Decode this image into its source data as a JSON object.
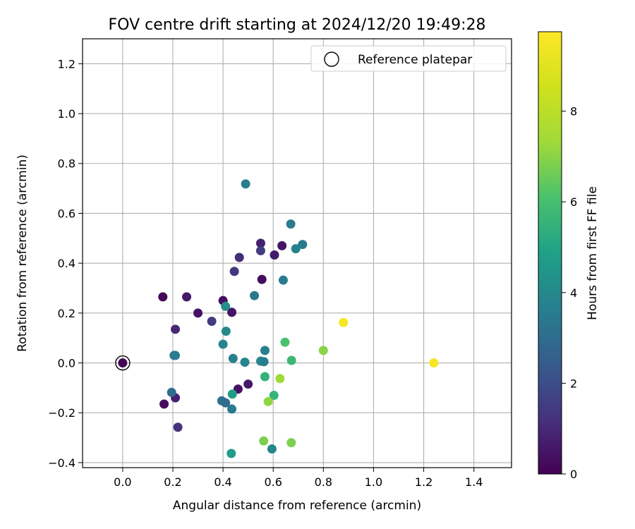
{
  "chart_data": {
    "type": "scatter",
    "title": "FOV centre drift starting at 2024/12/20 19:49:28",
    "xlabel": "Angular distance from reference (arcmin)",
    "ylabel": "Rotation from reference (arcmin)",
    "xlim": [
      -0.16,
      1.55
    ],
    "ylim": [
      -0.42,
      1.3
    ],
    "xticks": [
      0.0,
      0.2,
      0.4,
      0.6,
      0.8,
      1.0,
      1.2,
      1.4
    ],
    "xtick_labels": [
      "0.0",
      "0.2",
      "0.4",
      "0.6",
      "0.8",
      "1.0",
      "1.2",
      "1.4"
    ],
    "yticks": [
      -0.4,
      -0.2,
      0.0,
      0.2,
      0.4,
      0.6,
      0.8,
      1.0,
      1.2
    ],
    "ytick_labels": [
      "−0.4",
      "−0.2",
      "0.0",
      "0.2",
      "0.4",
      "0.6",
      "0.8",
      "1.0",
      "1.2"
    ],
    "grid": true,
    "legend": {
      "position": "top-right",
      "entries": [
        "Reference platepar"
      ]
    },
    "colorbar": {
      "label": "Hours from first FF file",
      "colormap": "viridis",
      "range": [
        0,
        9.75
      ],
      "ticks": [
        0,
        2,
        4,
        6,
        8
      ],
      "tick_labels": [
        "0",
        "2",
        "4",
        "6",
        "8"
      ]
    },
    "reference_point": {
      "x": 0.0,
      "y": 0.0
    },
    "points": [
      {
        "x": 0.0,
        "y": 0.0,
        "c": 0.1
      },
      {
        "x": 0.16,
        "y": 0.265,
        "c": 0.2
      },
      {
        "x": 0.165,
        "y": -0.165,
        "c": 0.3
      },
      {
        "x": 0.21,
        "y": 0.135,
        "c": 1.0
      },
      {
        "x": 0.21,
        "y": -0.14,
        "c": 0.8
      },
      {
        "x": 0.22,
        "y": -0.258,
        "c": 1.2
      },
      {
        "x": 0.255,
        "y": 0.265,
        "c": 0.6
      },
      {
        "x": 0.3,
        "y": 0.2,
        "c": 0.4
      },
      {
        "x": 0.355,
        "y": 0.167,
        "c": 1.5
      },
      {
        "x": 0.4,
        "y": 0.25,
        "c": 0.3
      },
      {
        "x": 0.435,
        "y": 0.203,
        "c": 0.5
      },
      {
        "x": 0.445,
        "y": 0.367,
        "c": 1.3
      },
      {
        "x": 0.465,
        "y": 0.423,
        "c": 1.1
      },
      {
        "x": 0.46,
        "y": -0.105,
        "c": 0.4
      },
      {
        "x": 0.5,
        "y": -0.085,
        "c": 0.6
      },
      {
        "x": 0.55,
        "y": 0.48,
        "c": 0.8
      },
      {
        "x": 0.55,
        "y": 0.45,
        "c": 1.5
      },
      {
        "x": 0.555,
        "y": 0.335,
        "c": 0.3
      },
      {
        "x": 0.605,
        "y": 0.433,
        "c": 0.7
      },
      {
        "x": 0.635,
        "y": 0.47,
        "c": 0.5
      },
      {
        "x": 0.205,
        "y": 0.03,
        "c": 3.3
      },
      {
        "x": 0.21,
        "y": 0.03,
        "c": 3.6
      },
      {
        "x": 0.195,
        "y": -0.118,
        "c": 3.0
      },
      {
        "x": 0.395,
        "y": -0.152,
        "c": 3.2
      },
      {
        "x": 0.41,
        "y": -0.16,
        "c": 3.0
      },
      {
        "x": 0.435,
        "y": -0.185,
        "c": 3.5
      },
      {
        "x": 0.4,
        "y": 0.075,
        "c": 3.8
      },
      {
        "x": 0.41,
        "y": 0.227,
        "c": 4.2
      },
      {
        "x": 0.412,
        "y": 0.127,
        "c": 4.0
      },
      {
        "x": 0.44,
        "y": 0.018,
        "c": 3.7
      },
      {
        "x": 0.487,
        "y": 0.003,
        "c": 3.9
      },
      {
        "x": 0.49,
        "y": 0.718,
        "c": 3.6
      },
      {
        "x": 0.525,
        "y": 0.27,
        "c": 3.4
      },
      {
        "x": 0.55,
        "y": 0.007,
        "c": 4.0
      },
      {
        "x": 0.563,
        "y": 0.005,
        "c": 3.5
      },
      {
        "x": 0.567,
        "y": 0.05,
        "c": 3.7
      },
      {
        "x": 0.64,
        "y": 0.332,
        "c": 3.5
      },
      {
        "x": 0.67,
        "y": 0.557,
        "c": 3.6
      },
      {
        "x": 0.69,
        "y": 0.458,
        "c": 3.8
      },
      {
        "x": 0.717,
        "y": 0.475,
        "c": 3.4
      },
      {
        "x": 0.595,
        "y": -0.345,
        "c": 3.9
      },
      {
        "x": 0.433,
        "y": -0.363,
        "c": 4.7
      },
      {
        "x": 0.437,
        "y": -0.125,
        "c": 4.8
      },
      {
        "x": 0.567,
        "y": -0.055,
        "c": 5.5
      },
      {
        "x": 0.603,
        "y": -0.13,
        "c": 5.6
      },
      {
        "x": 0.647,
        "y": 0.083,
        "c": 6.1
      },
      {
        "x": 0.673,
        "y": 0.01,
        "c": 5.7
      },
      {
        "x": 0.562,
        "y": -0.313,
        "c": 6.8
      },
      {
        "x": 0.58,
        "y": -0.155,
        "c": 7.1
      },
      {
        "x": 0.627,
        "y": -0.063,
        "c": 7.3
      },
      {
        "x": 0.672,
        "y": -0.32,
        "c": 6.8
      },
      {
        "x": 0.8,
        "y": 0.05,
        "c": 7.0
      },
      {
        "x": 0.88,
        "y": 0.162,
        "c": 9.6
      },
      {
        "x": 1.24,
        "y": 0.0,
        "c": 9.5
      }
    ]
  }
}
